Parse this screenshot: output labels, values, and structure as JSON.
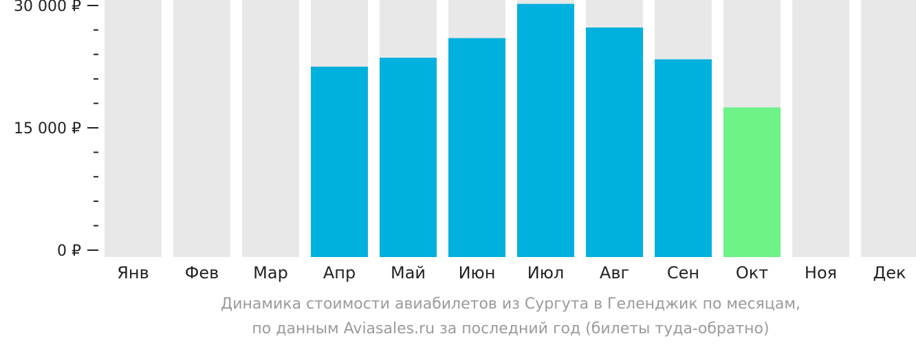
{
  "chart_data": {
    "type": "bar",
    "categories": [
      "Янв",
      "Фев",
      "Мар",
      "Апр",
      "Май",
      "Июн",
      "Июл",
      "Авг",
      "Сен",
      "Окт",
      "Ноя",
      "Дек"
    ],
    "values": [
      null,
      null,
      null,
      22500,
      23600,
      26000,
      30200,
      27300,
      23400,
      17500,
      null,
      null
    ],
    "highlight_index": 9,
    "ylim": [
      0,
      30000
    ],
    "yticks": [
      {
        "value": 0,
        "label": "0 ₽"
      },
      {
        "value": 15000,
        "label": "15 000 ₽"
      },
      {
        "value": 30000,
        "label": "30 000 ₽"
      }
    ],
    "minor_tick_step": 3000,
    "colors": {
      "bar": "#00b0dd",
      "highlight": "#6cf286",
      "background_bar": "#e8e8e8",
      "axis": "#222222"
    }
  },
  "caption": {
    "line1": "Динамика стоимости авиабилетов из Сургута в Геленджик по месяцам,",
    "line2": "по данным Aviasales.ru за последний год (билеты туда-обратно)"
  }
}
